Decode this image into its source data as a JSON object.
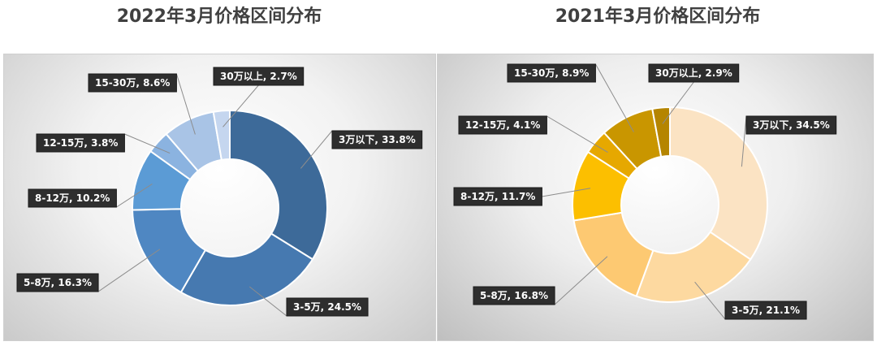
{
  "chart_data": [
    {
      "type": "donut",
      "title": "2022年3月价格区间分布",
      "categories": [
        "3万以下",
        "3-5万",
        "5-8万",
        "8-12万",
        "12-15万",
        "15-30万",
        "30万以上"
      ],
      "values": [
        33.8,
        24.5,
        16.3,
        10.2,
        3.8,
        8.6,
        2.7
      ],
      "labels": [
        "3万以下, 33.8%",
        "3-5万, 24.5%",
        "5-8万, 16.3%",
        "8-12万, 10.2%",
        "12-15万, 3.8%",
        "15-30万, 8.6%",
        "30万以上, 2.7%"
      ],
      "colors": [
        "#3d6a99",
        "#4679b0",
        "#4f87c2",
        "#5b9bd5",
        "#8bb3e0",
        "#a9c4e6",
        "#c5d6ef"
      ],
      "unit": "%"
    },
    {
      "type": "donut",
      "title": "2021年3月价格区间分布",
      "categories": [
        "3万以下",
        "3-5万",
        "5-8万",
        "8-12万",
        "12-15万",
        "15-30万",
        "30万以上"
      ],
      "values": [
        34.5,
        21.1,
        16.8,
        11.7,
        4.1,
        8.9,
        2.9
      ],
      "labels": [
        "3万以下, 34.5%",
        "3-5万, 21.1%",
        "5-8万, 16.8%",
        "8-12万, 11.7%",
        "12-15万, 4.1%",
        "15-30万, 8.9%",
        "30万以上, 2.9%"
      ],
      "colors": [
        "#fbe3c3",
        "#fdd9a0",
        "#fdc972",
        "#fcbf00",
        "#e6a800",
        "#c99600",
        "#b58500"
      ],
      "unit": "%"
    }
  ]
}
